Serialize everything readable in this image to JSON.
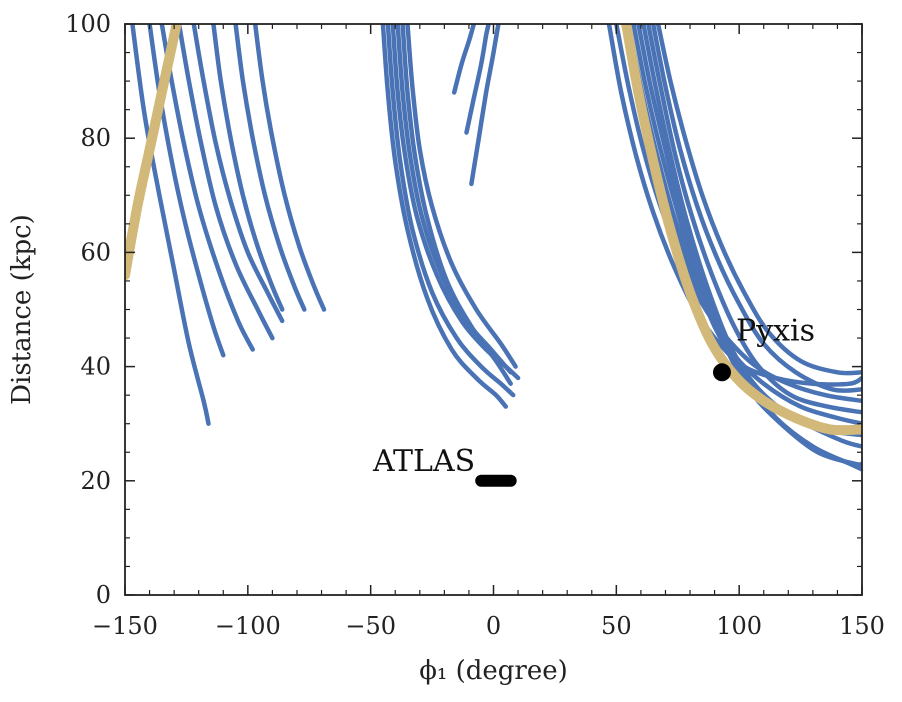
{
  "chart_data": {
    "type": "line",
    "xlabel": "ϕ₁ (degree)",
    "ylabel": "Distance (kpc)",
    "xlim": [
      -150,
      150
    ],
    "ylim": [
      0,
      100
    ],
    "x_ticks": [
      -150,
      -100,
      -50,
      0,
      50,
      100,
      150
    ],
    "x_tick_labels": [
      "−150",
      "−100",
      "−50",
      "0",
      "50",
      "100",
      "150"
    ],
    "y_ticks": [
      0,
      20,
      40,
      60,
      80,
      100
    ],
    "y_tick_labels": [
      "0",
      "20",
      "40",
      "60",
      "80",
      "100"
    ],
    "grid": false,
    "colors": {
      "orbit": "#4a73b5",
      "highlight": "#d2b97a",
      "marker": "#000000"
    },
    "orbit_series": [
      {
        "points": [
          [
            -147,
            100
          ],
          [
            -142,
            84
          ],
          [
            -136,
            70
          ],
          [
            -130,
            57
          ],
          [
            -124,
            44
          ],
          [
            -118,
            34
          ],
          [
            -116,
            30
          ]
        ]
      },
      {
        "points": [
          [
            -140,
            100
          ],
          [
            -136,
            88
          ],
          [
            -131,
            76
          ],
          [
            -126,
            66
          ],
          [
            -120,
            56
          ],
          [
            -114,
            47
          ],
          [
            -110,
            42
          ]
        ]
      },
      {
        "points": [
          [
            -135,
            100
          ],
          [
            -131,
            90
          ],
          [
            -126,
            79
          ],
          [
            -120,
            68
          ],
          [
            -112,
            57
          ],
          [
            -104,
            48
          ],
          [
            -98,
            43
          ]
        ]
      },
      {
        "points": [
          [
            -128,
            100
          ],
          [
            -124,
            90
          ],
          [
            -119,
            79
          ],
          [
            -113,
            68
          ],
          [
            -105,
            58
          ],
          [
            -96,
            50
          ],
          [
            -90,
            45
          ]
        ]
      },
      {
        "points": [
          [
            -122,
            100
          ],
          [
            -118,
            90
          ],
          [
            -113,
            79
          ],
          [
            -107,
            69
          ],
          [
            -100,
            60
          ],
          [
            -92,
            53
          ],
          [
            -86,
            48
          ]
        ]
      },
      {
        "points": [
          [
            -114,
            100
          ],
          [
            -111,
            90
          ],
          [
            -107,
            80
          ],
          [
            -102,
            70
          ],
          [
            -96,
            61
          ],
          [
            -90,
            54
          ],
          [
            -86,
            50
          ]
        ]
      },
      {
        "points": [
          [
            -105,
            100
          ],
          [
            -102,
            90
          ],
          [
            -98,
            80
          ],
          [
            -93,
            70
          ],
          [
            -87,
            61
          ],
          [
            -81,
            54
          ],
          [
            -77,
            50
          ]
        ]
      },
      {
        "points": [
          [
            -97,
            100
          ],
          [
            -94,
            90
          ],
          [
            -90,
            80
          ],
          [
            -85,
            70
          ],
          [
            -79,
            61
          ],
          [
            -73,
            54
          ],
          [
            -69,
            50
          ]
        ]
      },
      {
        "points": [
          [
            -45,
            100
          ],
          [
            -43,
            88
          ],
          [
            -40,
            76
          ],
          [
            -35,
            64
          ],
          [
            -27,
            52
          ],
          [
            -17,
            43
          ],
          [
            -7,
            38
          ],
          [
            1,
            35
          ],
          [
            5,
            33
          ]
        ]
      },
      {
        "points": [
          [
            -43,
            100
          ],
          [
            -41,
            88
          ],
          [
            -38,
            76
          ],
          [
            -33,
            64
          ],
          [
            -25,
            53
          ],
          [
            -15,
            45
          ],
          [
            -5,
            40
          ],
          [
            3,
            37
          ],
          [
            8,
            35
          ]
        ]
      },
      {
        "points": [
          [
            -41,
            100
          ],
          [
            -39,
            88
          ],
          [
            -36,
            77
          ],
          [
            -31,
            66
          ],
          [
            -23,
            56
          ],
          [
            -13,
            48
          ],
          [
            -3,
            43
          ],
          [
            5,
            40
          ],
          [
            10,
            38
          ]
        ]
      },
      {
        "points": [
          [
            -39,
            100
          ],
          [
            -37,
            88
          ],
          [
            -34,
            77
          ],
          [
            -29,
            66
          ],
          [
            -21,
            56
          ],
          [
            -11,
            48
          ],
          [
            -1,
            43
          ],
          [
            7,
            39
          ]
        ]
      },
      {
        "points": [
          [
            -37,
            100
          ],
          [
            -35,
            88
          ],
          [
            -32,
            77
          ],
          [
            -27,
            66
          ],
          [
            -19,
            55
          ],
          [
            -9,
            47
          ],
          [
            1,
            41
          ],
          [
            7,
            37
          ]
        ]
      },
      {
        "points": [
          [
            -35,
            100
          ],
          [
            -33,
            89
          ],
          [
            -30,
            78
          ],
          [
            -25,
            68
          ],
          [
            -17,
            58
          ],
          [
            -7,
            50
          ],
          [
            3,
            44
          ],
          [
            9,
            40
          ]
        ]
      },
      {
        "points": [
          [
            -16,
            88
          ],
          [
            -13,
            93
          ],
          [
            -10,
            97
          ],
          [
            -8,
            100
          ]
        ]
      },
      {
        "points": [
          [
            -11,
            81
          ],
          [
            -8,
            87
          ],
          [
            -5,
            93
          ],
          [
            -3,
            98
          ],
          [
            -2,
            100
          ]
        ]
      },
      {
        "points": [
          [
            -9,
            72
          ],
          [
            -6,
            80
          ],
          [
            -3,
            88
          ],
          [
            0,
            95
          ],
          [
            2,
            100
          ]
        ]
      },
      {
        "points": [
          [
            47,
            100
          ],
          [
            52,
            88
          ],
          [
            58,
            77
          ],
          [
            65,
            67
          ],
          [
            73,
            58
          ],
          [
            82,
            50
          ],
          [
            92,
            44
          ],
          [
            102,
            40
          ],
          [
            115,
            38
          ],
          [
            130,
            37
          ],
          [
            145,
            37
          ],
          [
            150,
            38
          ]
        ]
      },
      {
        "points": [
          [
            50,
            100
          ],
          [
            55,
            89
          ],
          [
            61,
            78
          ],
          [
            68,
            68
          ],
          [
            76,
            59
          ],
          [
            85,
            51
          ],
          [
            95,
            45
          ],
          [
            107,
            40
          ],
          [
            120,
            37
          ],
          [
            135,
            35
          ],
          [
            150,
            34
          ]
        ]
      },
      {
        "points": [
          [
            53,
            100
          ],
          [
            58,
            89
          ],
          [
            64,
            78
          ],
          [
            71,
            68
          ],
          [
            79,
            58
          ],
          [
            88,
            49
          ],
          [
            98,
            42
          ],
          [
            110,
            37
          ],
          [
            125,
            33
          ],
          [
            140,
            31
          ],
          [
            150,
            30
          ]
        ]
      },
      {
        "points": [
          [
            55,
            100
          ],
          [
            60,
            89
          ],
          [
            66,
            78
          ],
          [
            73,
            67
          ],
          [
            81,
            57
          ],
          [
            90,
            47
          ],
          [
            100,
            40
          ],
          [
            112,
            34
          ],
          [
            127,
            30
          ],
          [
            142,
            27
          ],
          [
            150,
            26
          ]
        ]
      },
      {
        "points": [
          [
            57,
            100
          ],
          [
            62,
            89
          ],
          [
            68,
            78
          ],
          [
            75,
            67
          ],
          [
            83,
            56
          ],
          [
            92,
            46
          ],
          [
            102,
            38
          ],
          [
            115,
            31
          ],
          [
            130,
            26
          ],
          [
            145,
            23
          ],
          [
            150,
            22
          ]
        ]
      },
      {
        "points": [
          [
            59,
            100
          ],
          [
            64,
            89
          ],
          [
            70,
            78
          ],
          [
            77,
            66
          ],
          [
            85,
            55
          ],
          [
            94,
            44
          ],
          [
            104,
            36
          ],
          [
            117,
            30
          ],
          [
            132,
            25
          ],
          [
            147,
            23
          ],
          [
            150,
            23
          ]
        ]
      },
      {
        "points": [
          [
            61,
            100
          ],
          [
            66,
            89
          ],
          [
            72,
            77
          ],
          [
            79,
            65
          ],
          [
            87,
            54
          ],
          [
            96,
            44
          ],
          [
            106,
            37
          ],
          [
            119,
            32
          ],
          [
            134,
            29
          ],
          [
            150,
            28
          ]
        ]
      },
      {
        "points": [
          [
            63,
            100
          ],
          [
            68,
            89
          ],
          [
            74,
            77
          ],
          [
            81,
            66
          ],
          [
            89,
            56
          ],
          [
            98,
            47
          ],
          [
            108,
            40
          ],
          [
            121,
            35
          ],
          [
            136,
            33
          ],
          [
            150,
            32
          ]
        ]
      },
      {
        "points": [
          [
            65,
            100
          ],
          [
            70,
            89
          ],
          [
            76,
            78
          ],
          [
            83,
            68
          ],
          [
            91,
            59
          ],
          [
            100,
            51
          ],
          [
            110,
            44
          ],
          [
            123,
            39
          ],
          [
            138,
            36
          ],
          [
            150,
            36
          ]
        ]
      },
      {
        "points": [
          [
            67,
            100
          ],
          [
            72,
            90
          ],
          [
            78,
            80
          ],
          [
            85,
            70
          ],
          [
            93,
            61
          ],
          [
            102,
            53
          ],
          [
            112,
            46
          ],
          [
            125,
            41
          ],
          [
            140,
            39
          ],
          [
            150,
            39
          ]
        ]
      }
    ],
    "highlight_series": [
      {
        "points": [
          [
            -150,
            56
          ],
          [
            -145,
            68
          ],
          [
            -140,
            78
          ],
          [
            -135,
            88
          ],
          [
            -131,
            96
          ],
          [
            -129,
            100
          ]
        ]
      },
      {
        "points": [
          [
            54,
            100
          ],
          [
            59,
            88
          ],
          [
            65,
            76
          ],
          [
            72,
            64
          ],
          [
            80,
            53
          ],
          [
            89,
            44
          ],
          [
            99,
            38
          ],
          [
            110,
            34
          ],
          [
            123,
            31
          ],
          [
            137,
            29
          ],
          [
            150,
            29
          ]
        ]
      }
    ],
    "markers": [
      {
        "label": "Pyxis",
        "x": 93,
        "y": 39
      }
    ],
    "segments": [
      {
        "label": "ATLAS",
        "x": [
          -5,
          7
        ],
        "y": 20
      }
    ]
  }
}
